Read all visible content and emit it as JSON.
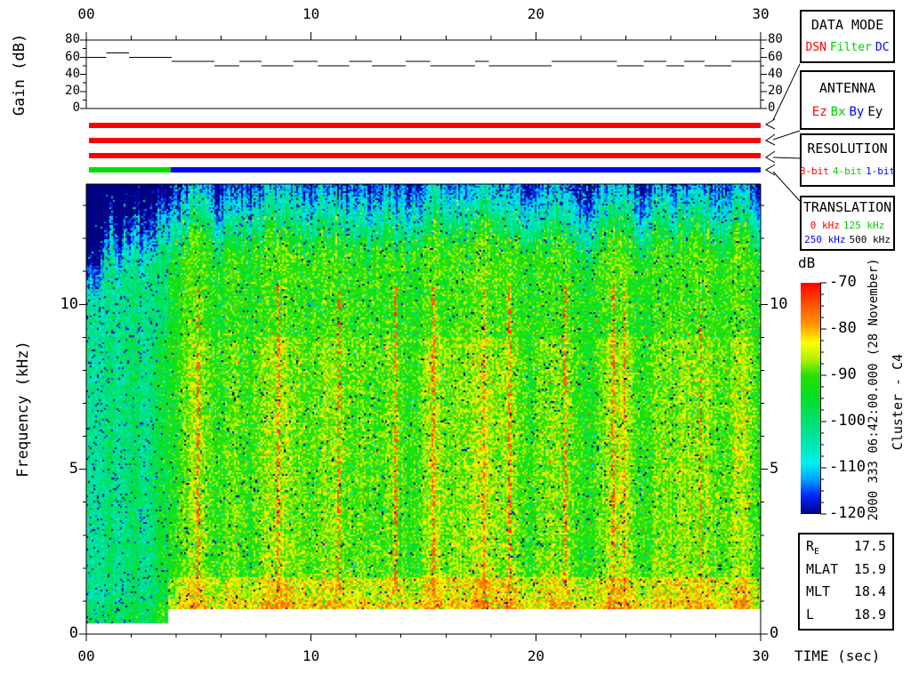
{
  "top_axis": {
    "tick_labels": [
      "00",
      "10",
      "20",
      "30"
    ],
    "tick_values": [
      0,
      10,
      20,
      30
    ],
    "minor_step": 2
  },
  "gain_panel": {
    "ylabel": "Gain (dB)",
    "ytick_labels": [
      "0",
      "20",
      "40",
      "60",
      "80"
    ],
    "ytick_values": [
      0,
      20,
      40,
      60,
      80
    ],
    "yminor_step": 10,
    "ylim": [
      0,
      80
    ]
  },
  "spectrogram_panel": {
    "ylabel": "Frequency (kHz)",
    "ytick_labels": [
      "0",
      "5",
      "10"
    ],
    "ytick_values": [
      0,
      5,
      10
    ],
    "yminor_step": 1,
    "f_max_khz": 13.65
  },
  "time_axis": {
    "axis_label": "TIME (sec)",
    "tick_labels": [
      "00",
      "10",
      "20",
      "30"
    ],
    "tick_values": [
      0,
      10,
      20,
      30
    ],
    "minor_step": 2,
    "xlim": [
      0,
      30
    ]
  },
  "status_bars": {
    "bars": [
      {
        "name": "data-mode-bar",
        "segments": [
          {
            "start": 0,
            "end": 30,
            "color": "#ff0000",
            "meaning": "DSN"
          }
        ]
      },
      {
        "name": "antenna-bar",
        "segments": [
          {
            "start": 0,
            "end": 30,
            "color": "#ff0000",
            "meaning": "Ez"
          }
        ]
      },
      {
        "name": "resolution-bar",
        "segments": [
          {
            "start": 0,
            "end": 30,
            "color": "#ff0000",
            "meaning": "8-bit"
          }
        ]
      },
      {
        "name": "translation-bar",
        "segments": [
          {
            "start": 0,
            "end": 3.65,
            "color": "#00dd00",
            "meaning": "125 kHz"
          },
          {
            "start": 3.65,
            "end": 30,
            "color": "#0000ff",
            "meaning": "250 kHz"
          }
        ]
      }
    ]
  },
  "legend_boxes": [
    {
      "title": "DATA MODE",
      "rows": [
        [
          {
            "text": "DSN",
            "color": "#ff0000"
          },
          {
            "text": "Filter",
            "color": "#00cc00"
          },
          {
            "text": "DC",
            "color": "#0000ff"
          }
        ]
      ]
    },
    {
      "title": "ANTENNA",
      "rows": [
        [
          {
            "text": "Ez",
            "color": "#ff0000"
          },
          {
            "text": "Bx",
            "color": "#00cc00"
          },
          {
            "text": "By",
            "color": "#0000ff"
          },
          {
            "text": "Ey",
            "color": "#000000"
          }
        ]
      ]
    },
    {
      "title": "RESOLUTION",
      "rows": [
        [
          {
            "text": "8-bit",
            "color": "#ff0000"
          },
          {
            "text": "4-bit",
            "color": "#00cc00"
          },
          {
            "text": "1-bit",
            "color": "#0000ff"
          }
        ]
      ]
    },
    {
      "title": "TRANSLATION",
      "rows": [
        [
          {
            "text": "0 kHz",
            "color": "#ff0000"
          },
          {
            "text": "125 kHz",
            "color": "#00cc00"
          }
        ],
        [
          {
            "text": "250 kHz",
            "color": "#0000ff"
          },
          {
            "text": "500 kHz",
            "color": "#000000"
          }
        ]
      ]
    }
  ],
  "colorbar": {
    "title": "dB",
    "tick_labels": [
      "-70",
      "-80",
      "-90",
      "-100",
      "-110",
      "-120"
    ],
    "tick_values": [
      -70,
      -80,
      -90,
      -100,
      -110,
      -120
    ],
    "minor_step": 2.5,
    "range_db": [
      -120,
      -70
    ],
    "gradient_stops": [
      [
        -120,
        "#000082"
      ],
      [
        -116,
        "#0028ff"
      ],
      [
        -112.5,
        "#00a0ff"
      ],
      [
        -109,
        "#00f0f0"
      ],
      [
        -106,
        "#00e8c0"
      ],
      [
        -101,
        "#00e080"
      ],
      [
        -95,
        "#00e028"
      ],
      [
        -90,
        "#28e000"
      ],
      [
        -86.5,
        "#b4f000"
      ],
      [
        -83,
        "#ffff00"
      ],
      [
        -79,
        "#ff9600"
      ],
      [
        -74.5,
        "#ff5000"
      ],
      [
        -70,
        "#ff0000"
      ]
    ]
  },
  "side_annotations": {
    "datetime": "2000 333 06:42:00.000 (28 November)",
    "spacecraft": "Cluster - C4"
  },
  "info_table": {
    "rows": [
      {
        "label": "R",
        "sub": "E",
        "value": "17.5"
      },
      {
        "label": "MLAT",
        "sub": "",
        "value": "15.9"
      },
      {
        "label": "MLT",
        "sub": "",
        "value": "18.4"
      },
      {
        "label": "L",
        "sub": "",
        "value": "18.9"
      }
    ]
  },
  "chart_data": [
    {
      "type": "line",
      "name": "receiver_gain",
      "style": "step",
      "title": "Gain (dB)",
      "xlabel": "TIME (sec)",
      "ylabel": "Gain (dB)",
      "xlim": [
        0,
        30
      ],
      "ylim": [
        0,
        80
      ],
      "grid": false,
      "step_segments_t0_t1_db": [
        [
          0,
          0.9,
          60
        ],
        [
          0.9,
          1.9,
          65
        ],
        [
          1.9,
          3.8,
          60
        ],
        [
          3.8,
          5.7,
          55
        ],
        [
          5.7,
          6.8,
          50
        ],
        [
          6.8,
          7.8,
          55
        ],
        [
          7.8,
          9.2,
          50
        ],
        [
          9.2,
          10.3,
          55
        ],
        [
          10.3,
          11.7,
          50
        ],
        [
          11.7,
          12.7,
          55
        ],
        [
          12.7,
          14.2,
          50
        ],
        [
          14.2,
          15.3,
          55
        ],
        [
          15.3,
          17.3,
          50
        ],
        [
          17.3,
          17.9,
          55
        ],
        [
          17.9,
          20.7,
          50
        ],
        [
          20.7,
          23.6,
          55
        ],
        [
          23.6,
          24.8,
          50
        ],
        [
          24.8,
          25.8,
          55
        ],
        [
          25.8,
          26.6,
          50
        ],
        [
          26.6,
          27.5,
          55
        ],
        [
          27.5,
          28.7,
          50
        ],
        [
          28.7,
          30,
          55
        ]
      ]
    },
    {
      "type": "heatmap",
      "name": "wbd_spectrogram",
      "xlabel": "TIME (sec)",
      "ylabel": "Frequency (kHz)",
      "zlabel": "dB",
      "xlim": [
        0,
        30
      ],
      "ylim": [
        0,
        13.65
      ],
      "zlim": [
        -120,
        -70
      ],
      "coverage": [
        {
          "t": [
            0,
            3.65
          ],
          "f": [
            0.3,
            13.65
          ],
          "mean_db": -103,
          "note": "125 kHz translation segment, weaker cyan-blue background"
        },
        {
          "t": [
            3.65,
            30
          ],
          "f": [
            0.77,
            13.65
          ],
          "mean_db": -94,
          "note": "250 kHz translation segment, green background with yellow-orange bursts"
        }
      ],
      "dark_band_above_khz": 11.2,
      "bright_low_band_khz": [
        0.77,
        1.75
      ],
      "bursts_center_sigma_amp": [
        [
          4.9,
          0.55,
          7
        ],
        [
          6.6,
          0.4,
          5
        ],
        [
          8.3,
          0.6,
          8
        ],
        [
          9.4,
          0.35,
          4
        ],
        [
          10.9,
          0.6,
          7
        ],
        [
          12.3,
          0.35,
          4
        ],
        [
          13.5,
          0.5,
          6
        ],
        [
          15.4,
          0.5,
          8
        ],
        [
          16.4,
          0.3,
          4
        ],
        [
          17.6,
          0.6,
          9
        ],
        [
          18.9,
          0.4,
          6
        ],
        [
          20.3,
          0.4,
          4
        ],
        [
          21.2,
          0.55,
          6
        ],
        [
          23.3,
          0.45,
          7
        ],
        [
          24.1,
          0.35,
          6
        ],
        [
          25.6,
          0.5,
          6
        ],
        [
          26.5,
          0.3,
          4
        ],
        [
          27.4,
          0.55,
          7
        ],
        [
          29.2,
          0.5,
          8
        ]
      ],
      "early_bursts_center_sigma_amp": [
        [
          1.05,
          0.25,
          4
        ],
        [
          2.15,
          0.3,
          5
        ],
        [
          3.35,
          0.28,
          9
        ]
      ],
      "red_streak_times_sec": [
        5.0,
        8.55,
        11.25,
        13.75,
        15.45,
        17.7,
        18.85,
        21.3,
        23.45,
        23.95,
        27.35
      ],
      "render_seed": 20001128
    }
  ]
}
